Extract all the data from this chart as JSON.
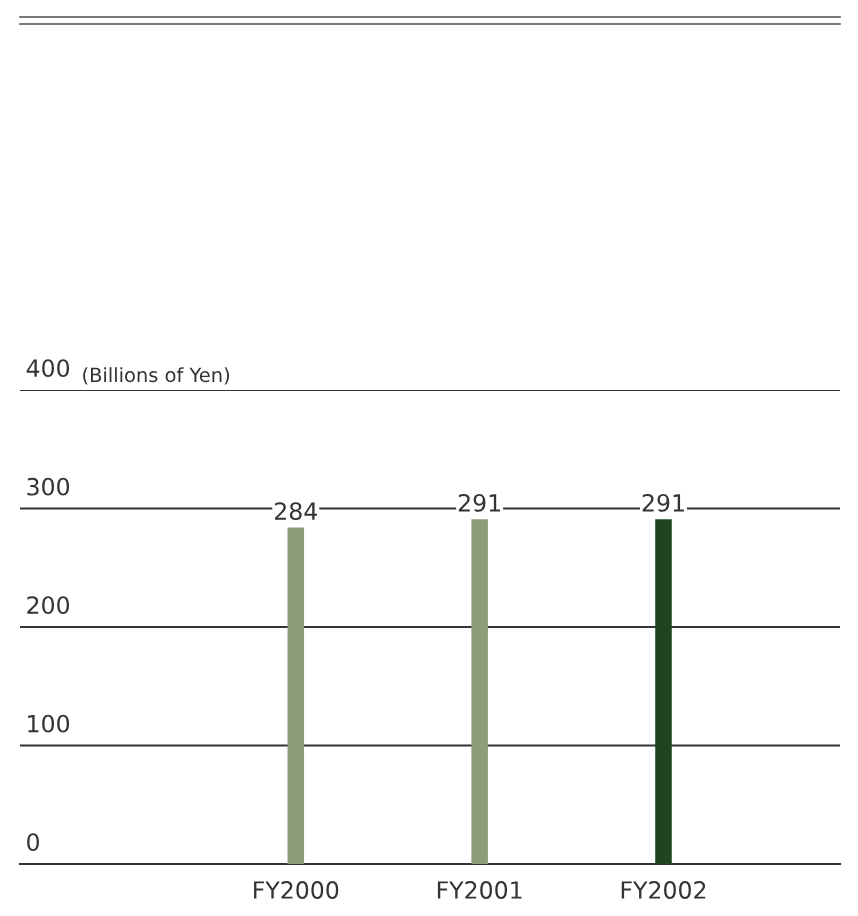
{
  "chart_data": {
    "type": "bar",
    "ylabel": "(Billions of Yen)",
    "categories": [
      "FY2000",
      "FY2001",
      "FY2002"
    ],
    "values": [
      284,
      291,
      291
    ],
    "colors": [
      "#8c9d7c",
      "#8c9d7c",
      "#1e4520"
    ],
    "ylim": [
      0,
      400
    ],
    "yticks": [
      0,
      100,
      200,
      300,
      400
    ],
    "grid": "y",
    "data_labels": true,
    "legend": false
  }
}
